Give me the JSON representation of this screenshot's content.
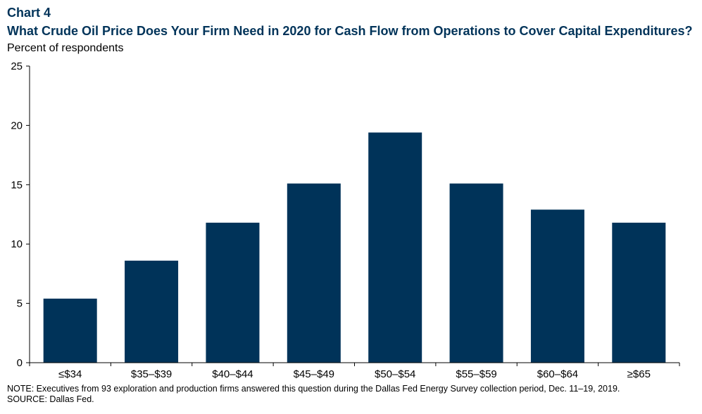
{
  "chart_label": "Chart 4",
  "chart_data": {
    "type": "bar",
    "title": "What Crude Oil Price Does Your Firm Need in 2020 for Cash Flow from Operations to Cover Capital Expenditures?",
    "ylabel": "Percent of respondents",
    "xlabel": "",
    "categories": [
      "≤$34",
      "$35–$39",
      "$40–$44",
      "$45–$49",
      "$50–$54",
      "$55–$59",
      "$60–$64",
      "≥$65"
    ],
    "values": [
      5.4,
      8.6,
      11.8,
      15.1,
      19.4,
      15.1,
      12.9,
      11.8
    ],
    "ylim": [
      0,
      25
    ],
    "yticks": [
      0,
      5,
      10,
      15,
      20,
      25
    ],
    "grid": false,
    "bar_color": "#003359"
  },
  "note": "NOTE: Executives from 93 exploration and production firms answered this question during the Dallas Fed Energy Survey collection period, Dec. 11–19, 2019.",
  "source": "SOURCE: Dallas Fed."
}
